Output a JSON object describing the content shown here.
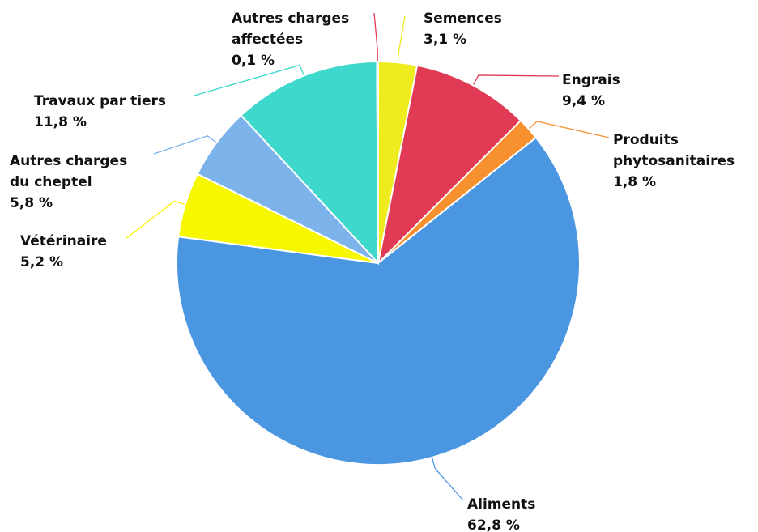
{
  "chart_data": {
    "type": "pie",
    "categories": [
      "Semences",
      "Engrais",
      "Produits phytosanitaires",
      "Aliments",
      "Vétérinaire",
      "Autres charges du cheptel",
      "Travaux par tiers",
      "Autres charges affectées"
    ],
    "values": [
      3.1,
      9.4,
      1.8,
      62.8,
      5.2,
      5.8,
      11.8,
      0.1
    ],
    "value_labels": [
      "3,1 %",
      "9,4 %",
      "1,8 %",
      "62,8 %",
      "5,2 %",
      "5,8 %",
      "11,8 %",
      "0,1 %"
    ],
    "colors": [
      "#eeeb1f",
      "#e03a55",
      "#f7902f",
      "#4a96e0",
      "#f7f700",
      "#7bb3ea",
      "#3fd8cc",
      "#e03a55"
    ]
  }
}
